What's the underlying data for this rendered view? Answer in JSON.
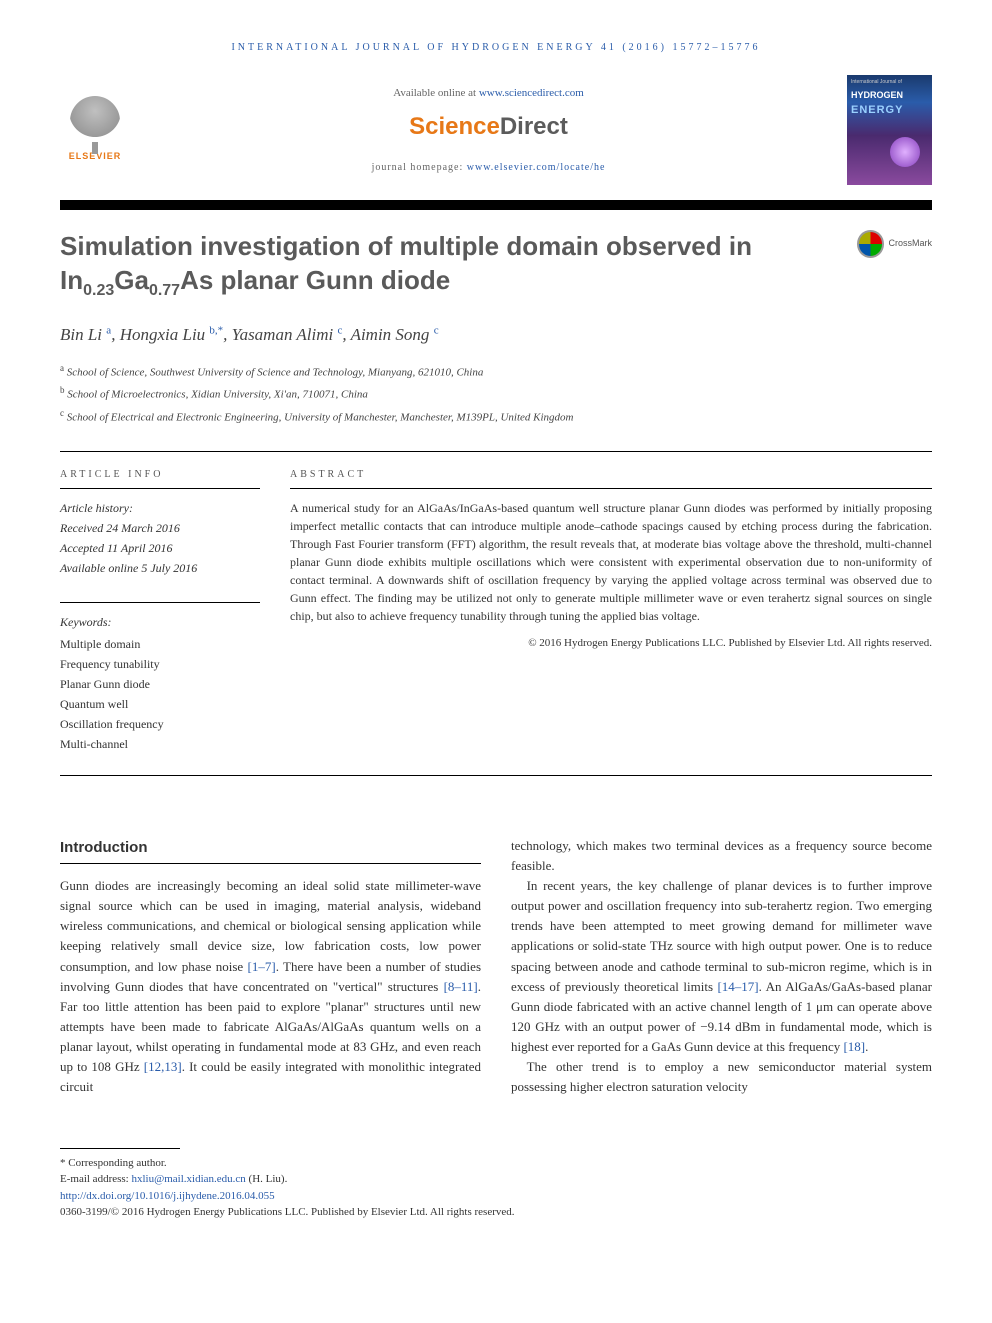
{
  "journal_header": "INTERNATIONAL JOURNAL OF HYDROGEN ENERGY 41 (2016) 15772–15776",
  "available_online_prefix": "Available online at ",
  "available_online_link": "www.sciencedirect.com",
  "sciencedirect_brand": {
    "part1": "Science",
    "part2": "Direct"
  },
  "journal_homepage_prefix": "journal homepage: ",
  "journal_homepage_link": "www.elsevier.com/locate/he",
  "elsevier_label": "ELSEVIER",
  "cover": {
    "line1": "International Journal of",
    "line2": "HYDROGEN",
    "line3": "ENERGY"
  },
  "crossmark_label": "CrossMark",
  "title_html": "Simulation investigation of multiple domain observed in In<sub>0.23</sub>Ga<sub>0.77</sub>As planar Gunn diode",
  "authors_html": "Bin Li <sup>a</sup>, Hongxia Liu <sup>b,*</sup>, Yasaman Alimi <sup>c</sup>, Aimin Song <sup>c</sup>",
  "affiliations": [
    {
      "sup": "a",
      "text": "School of Science, Southwest University of Science and Technology, Mianyang, 621010, China"
    },
    {
      "sup": "b",
      "text": "School of Microelectronics, Xidian University, Xi'an, 710071, China"
    },
    {
      "sup": "c",
      "text": "School of Electrical and Electronic Engineering, University of Manchester, Manchester, M139PL, United Kingdom"
    }
  ],
  "article_info_label": "ARTICLE INFO",
  "abstract_label": "ABSTRACT",
  "history": {
    "label": "Article history:",
    "received": "Received 24 March 2016",
    "accepted": "Accepted 11 April 2016",
    "online": "Available online 5 July 2016"
  },
  "keywords_label": "Keywords:",
  "keywords": [
    "Multiple domain",
    "Frequency tunability",
    "Planar Gunn diode",
    "Quantum well",
    "Oscillation frequency",
    "Multi-channel"
  ],
  "abstract_text": "A numerical study for an AlGaAs/InGaAs-based quantum well structure planar Gunn diodes was performed by initially proposing imperfect metallic contacts that can introduce multiple anode–cathode spacings caused by etching process during the fabrication. Through Fast Fourier transform (FFT) algorithm, the result reveals that, at moderate bias voltage above the threshold, multi-channel planar Gunn diode exhibits multiple oscillations which were consistent with experimental observation due to non-uniformity of contact terminal. A downwards shift of oscillation frequency by varying the applied voltage across terminal was observed due to Gunn effect. The finding may be utilized not only to generate multiple millimeter wave or even terahertz signal sources on single chip, but also to achieve frequency tunability through tuning the applied bias voltage.",
  "abstract_copyright": "© 2016 Hydrogen Energy Publications LLC. Published by Elsevier Ltd. All rights reserved.",
  "intro_heading": "Introduction",
  "body_left_html": "Gunn diodes are increasingly becoming an ideal solid state millimeter-wave signal source which can be used in imaging, material analysis, wideband wireless communications, and chemical or biological sensing application while keeping relatively small device size, low fabrication costs, low power consumption, and low phase noise <span class=\"ref\">[1–7]</span>. There have been a number of studies involving Gunn diodes that have concentrated on \"vertical\" structures <span class=\"ref\">[8–11]</span>. Far too little attention has been paid to explore \"planar\" structures until new attempts have been made to fabricate AlGaAs/AlGaAs quantum wells on a planar layout, whilst operating in fundamental mode at 83 GHz, and even reach up to 108 GHz <span class=\"ref\">[12,13]</span>. It could be easily integrated with monolithic integrated circuit",
  "body_right_p1": "technology, which makes two terminal devices as a frequency source become feasible.",
  "body_right_p2_html": "In recent years, the key challenge of planar devices is to further improve output power and oscillation frequency into sub-terahertz region. Two emerging trends have been attempted to meet growing demand for millimeter wave applications or solid-state THz source with high output power. One is to reduce spacing between anode and cathode terminal to sub-micron regime, which is in excess of previously theoretical limits <span class=\"ref\">[14–17]</span>. An AlGaAs/GaAs-based planar Gunn diode fabricated with an active channel length of 1 μm can operate above 120 GHz with an output power of −9.14 dBm in fundamental mode, which is highest ever reported for a GaAs Gunn device at this frequency <span class=\"ref\">[18]</span>.",
  "body_right_p3": "The other trend is to employ a new semiconductor material system possessing higher electron saturation velocity",
  "footnotes": {
    "corresponding": "* Corresponding author.",
    "email_label": "E-mail address: ",
    "email": "hxliu@mail.xidian.edu.cn",
    "email_suffix": " (H. Liu).",
    "doi": "http://dx.doi.org/10.1016/j.ijhydene.2016.04.055",
    "issn_copyright": "0360-3199/© 2016 Hydrogen Energy Publications LLC. Published by Elsevier Ltd. All rights reserved."
  },
  "colors": {
    "link": "#2a5caa",
    "elsevier_orange": "#e77817",
    "text": "#333333",
    "title_gray": "#5a5a5a"
  }
}
